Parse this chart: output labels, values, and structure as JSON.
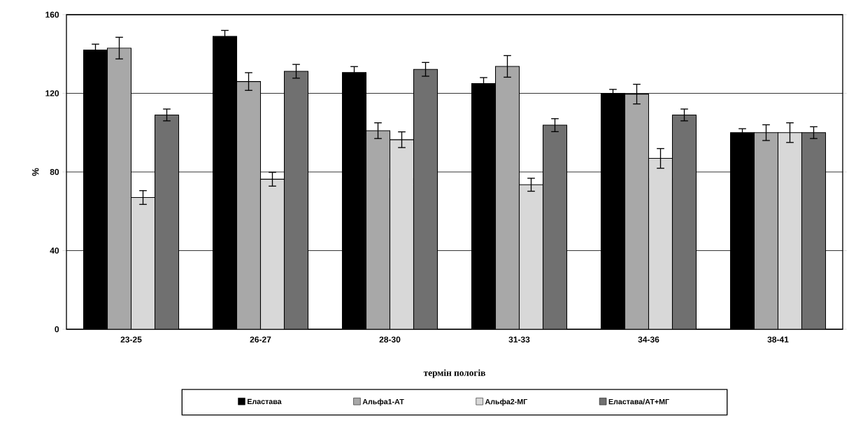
{
  "chart_data": {
    "type": "bar",
    "categories": [
      "23-25",
      "26-27",
      "28-30",
      "31-33",
      "34-36",
      "38-41"
    ],
    "xlabel": "термін пологів",
    "ylabel": "%",
    "ylim": [
      0,
      160
    ],
    "yticks": [
      0,
      40,
      80,
      120,
      160
    ],
    "grid": "y",
    "legend": "bottom",
    "series": [
      {
        "name": "Еластава",
        "color": "#000000",
        "values": [
          142,
          149,
          130.6,
          125,
          120,
          100
        ],
        "errors": [
          3,
          3,
          3,
          3,
          2,
          2
        ]
      },
      {
        "name": "Альфа1-АТ",
        "color": "#a8a8a8",
        "values": [
          143,
          126,
          101,
          133.7,
          119.6,
          100
        ],
        "errors": [
          5.5,
          4.5,
          4,
          5.5,
          5,
          4
        ]
      },
      {
        "name": "Альфа2-МГ",
        "color": "#d8d8d8",
        "values": [
          67,
          76.3,
          96.4,
          73.5,
          86.9,
          100
        ],
        "errors": [
          3.5,
          3.5,
          4,
          3.3,
          5,
          5
        ]
      },
      {
        "name": "Еластава/АТ+МГ",
        "color": "#707070",
        "values": [
          109,
          131.2,
          132.2,
          103.8,
          109,
          100
        ],
        "errors": [
          3,
          3.5,
          3.5,
          3.3,
          3,
          3
        ]
      }
    ]
  }
}
